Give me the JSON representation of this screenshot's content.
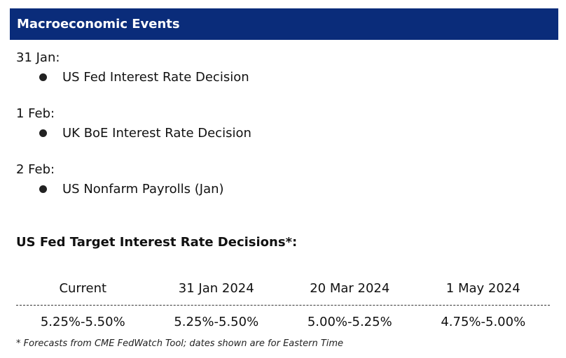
{
  "header": {
    "title": "Macroeconomic Events",
    "background_color": "#0a2c7a"
  },
  "events": [
    {
      "date": "31 Jan:",
      "items": [
        "US Fed Interest Rate Decision"
      ]
    },
    {
      "date": "1 Feb:",
      "items": [
        "UK BoE Interest Rate Decision"
      ]
    },
    {
      "date": "2 Feb:",
      "items": [
        "US Nonfarm Payrolls (Jan)"
      ]
    }
  ],
  "rates": {
    "title": "US Fed Target Interest Rate Decisions*:",
    "columns": [
      "Current",
      "31 Jan 2024",
      "20 Mar 2024",
      "1 May 2024"
    ],
    "values": [
      "5.25%-5.50%",
      "5.25%-5.50%",
      "5.00%-5.25%",
      "4.75%-5.00%"
    ],
    "footnote": "* Forecasts from CME FedWatch Tool; dates shown are for Eastern Time"
  }
}
